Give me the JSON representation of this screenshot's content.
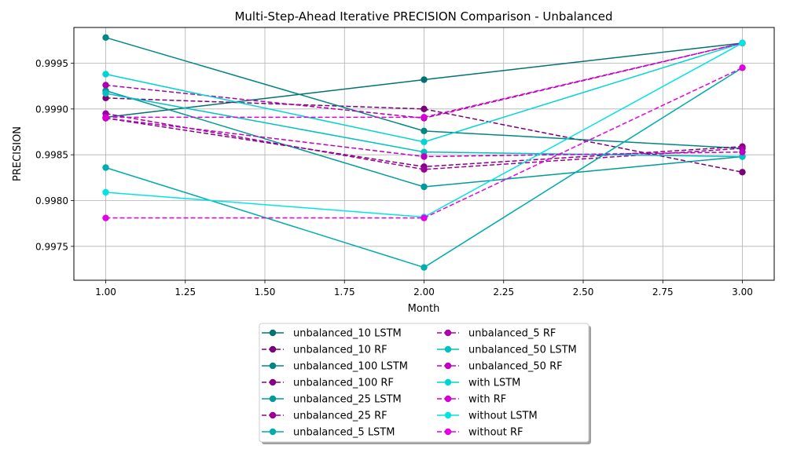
{
  "chart_data": {
    "type": "line",
    "title": "Multi-Step-Ahead Iterative PRECISION Comparison - Unbalanced",
    "xlabel": "Month",
    "ylabel": "PRECISION",
    "xlim": [
      0.9,
      3.1
    ],
    "ylim": [
      0.99713,
      0.99989
    ],
    "xticks": [
      1.0,
      1.25,
      1.5,
      1.75,
      2.0,
      2.25,
      2.5,
      2.75,
      3.0
    ],
    "xtick_labels": [
      "1.00",
      "1.25",
      "1.50",
      "1.75",
      "2.00",
      "2.25",
      "2.50",
      "2.75",
      "3.00"
    ],
    "yticks": [
      0.9975,
      0.998,
      0.9985,
      0.999,
      0.9995
    ],
    "ytick_labels": [
      "0.9975",
      "0.9980",
      "0.9985",
      "0.9990",
      "0.9995"
    ],
    "grid": true,
    "legend_position": "below-center",
    "x": [
      1,
      2,
      3
    ],
    "series": [
      {
        "name": "unbalanced_10 LSTM",
        "color": "#007272",
        "dashed": false,
        "values": [
          0.99891,
          0.99932,
          0.99972
        ]
      },
      {
        "name": "unbalanced_10 RF",
        "color": "#7a007a",
        "dashed": true,
        "values": [
          0.99912,
          0.999,
          0.99831
        ]
      },
      {
        "name": "unbalanced_100 LSTM",
        "color": "#008585",
        "dashed": false,
        "values": [
          0.99978,
          0.99876,
          0.99857
        ]
      },
      {
        "name": "unbalanced_100 RF",
        "color": "#850085",
        "dashed": true,
        "values": [
          0.9989,
          0.99837,
          0.99859
        ]
      },
      {
        "name": "unbalanced_25 LSTM",
        "color": "#009a9a",
        "dashed": false,
        "values": [
          0.9992,
          0.99815,
          0.99848
        ]
      },
      {
        "name": "unbalanced_25 RF",
        "color": "#9a009a",
        "dashed": true,
        "values": [
          0.99895,
          0.99834,
          0.99857
        ]
      },
      {
        "name": "unbalanced_5 LSTM",
        "color": "#00acac",
        "dashed": false,
        "values": [
          0.99836,
          0.99727,
          0.99945
        ]
      },
      {
        "name": "unbalanced_5 RF",
        "color": "#ac00ac",
        "dashed": true,
        "values": [
          0.99926,
          0.9989,
          0.99972
        ]
      },
      {
        "name": "unbalanced_50 LSTM",
        "color": "#00c0c0",
        "dashed": false,
        "values": [
          0.99917,
          0.99853,
          0.99848
        ]
      },
      {
        "name": "unbalanced_50 RF",
        "color": "#c000c0",
        "dashed": true,
        "values": [
          0.9989,
          0.99848,
          0.99853
        ]
      },
      {
        "name": "with LSTM",
        "color": "#00d4d4",
        "dashed": false,
        "values": [
          0.99938,
          0.99864,
          0.99972
        ]
      },
      {
        "name": "with RF",
        "color": "#d400d4",
        "dashed": true,
        "values": [
          0.99891,
          0.99891,
          0.99972
        ]
      },
      {
        "name": "without LSTM",
        "color": "#00e4e4",
        "dashed": false,
        "values": [
          0.99809,
          0.99782,
          0.99972
        ]
      },
      {
        "name": "without RF",
        "color": "#e400e4",
        "dashed": true,
        "values": [
          0.99781,
          0.99781,
          0.99945
        ]
      }
    ]
  }
}
